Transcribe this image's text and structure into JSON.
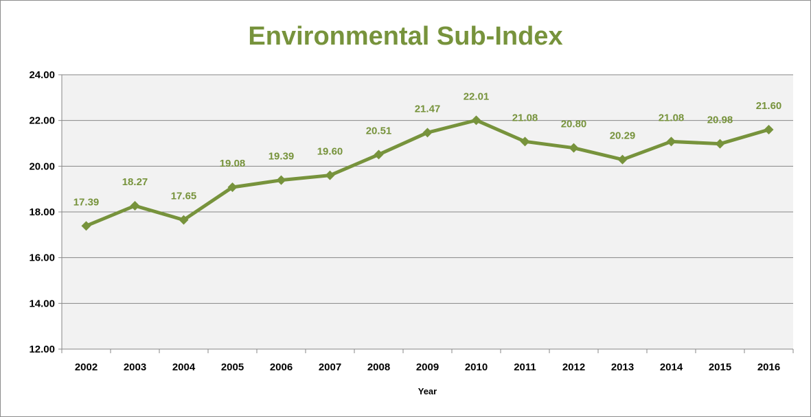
{
  "chart_data": {
    "type": "line",
    "title": "Environmental Sub-Index",
    "xlabel": "Year",
    "ylabel": "",
    "categories": [
      "2002",
      "2003",
      "2004",
      "2005",
      "2006",
      "2007",
      "2008",
      "2009",
      "2010",
      "2011",
      "2012",
      "2013",
      "2014",
      "2015",
      "2016"
    ],
    "series": [
      {
        "values": [
          17.39,
          18.27,
          17.65,
          19.08,
          19.39,
          19.6,
          20.51,
          21.47,
          22.01,
          21.08,
          20.8,
          20.29,
          21.08,
          20.98,
          21.6
        ],
        "data_labels": [
          "17.39",
          "18.27",
          "17.65",
          "19.08",
          "19.39",
          "19.60",
          "20.51",
          "21.47",
          "22.01",
          "21.08",
          "20.80",
          "20.29",
          "21.08",
          "20.98",
          "21.60"
        ]
      }
    ],
    "ylim": [
      12,
      24
    ],
    "yticks": [
      12,
      14,
      16,
      18,
      20,
      22,
      24
    ],
    "ytick_labels": [
      "12.00",
      "14.00",
      "16.00",
      "18.00",
      "20.00",
      "22.00",
      "24.00"
    ],
    "grid": true,
    "legend": "none",
    "marker": "diamond",
    "colors": {
      "series": "#77933c",
      "title": "#77933c",
      "plot_background": "#f2f2f2",
      "gridline": "#878787"
    }
  }
}
